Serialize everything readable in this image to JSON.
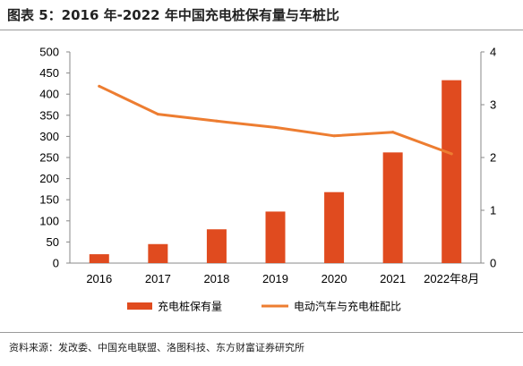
{
  "title": "图表 5：2016 年-2022 年中国充电桩保有量与车桩比",
  "source": "资料来源：发改委、中国充电联盟、洛图科技、东方财富证券研究所",
  "chart_data": {
    "type": "bar",
    "categories": [
      "2016",
      "2017",
      "2018",
      "2019",
      "2020",
      "2021",
      "2022年8月"
    ],
    "series": [
      {
        "name": "充电桩保有量",
        "type": "bar",
        "axis": "left",
        "values": [
          21,
          45,
          80,
          122,
          168,
          262,
          433
        ]
      },
      {
        "name": "电动汽车与充电桩配比",
        "type": "line",
        "axis": "right",
        "values": [
          3.35,
          2.82,
          2.69,
          2.57,
          2.41,
          2.48,
          2.07
        ]
      }
    ],
    "y_left": {
      "min": 0,
      "max": 500,
      "ticks": [
        "0",
        "50",
        "100",
        "150",
        "200",
        "250",
        "300",
        "350",
        "400",
        "450",
        "500"
      ]
    },
    "y_right": {
      "min": 0,
      "max": 4,
      "ticks": [
        "0",
        "1",
        "2",
        "3",
        "4"
      ]
    },
    "legend_position": "bottom",
    "grid": false,
    "colors": {
      "bar": "#E04B1F",
      "line": "#ED7D31",
      "axis": "#888888"
    }
  }
}
